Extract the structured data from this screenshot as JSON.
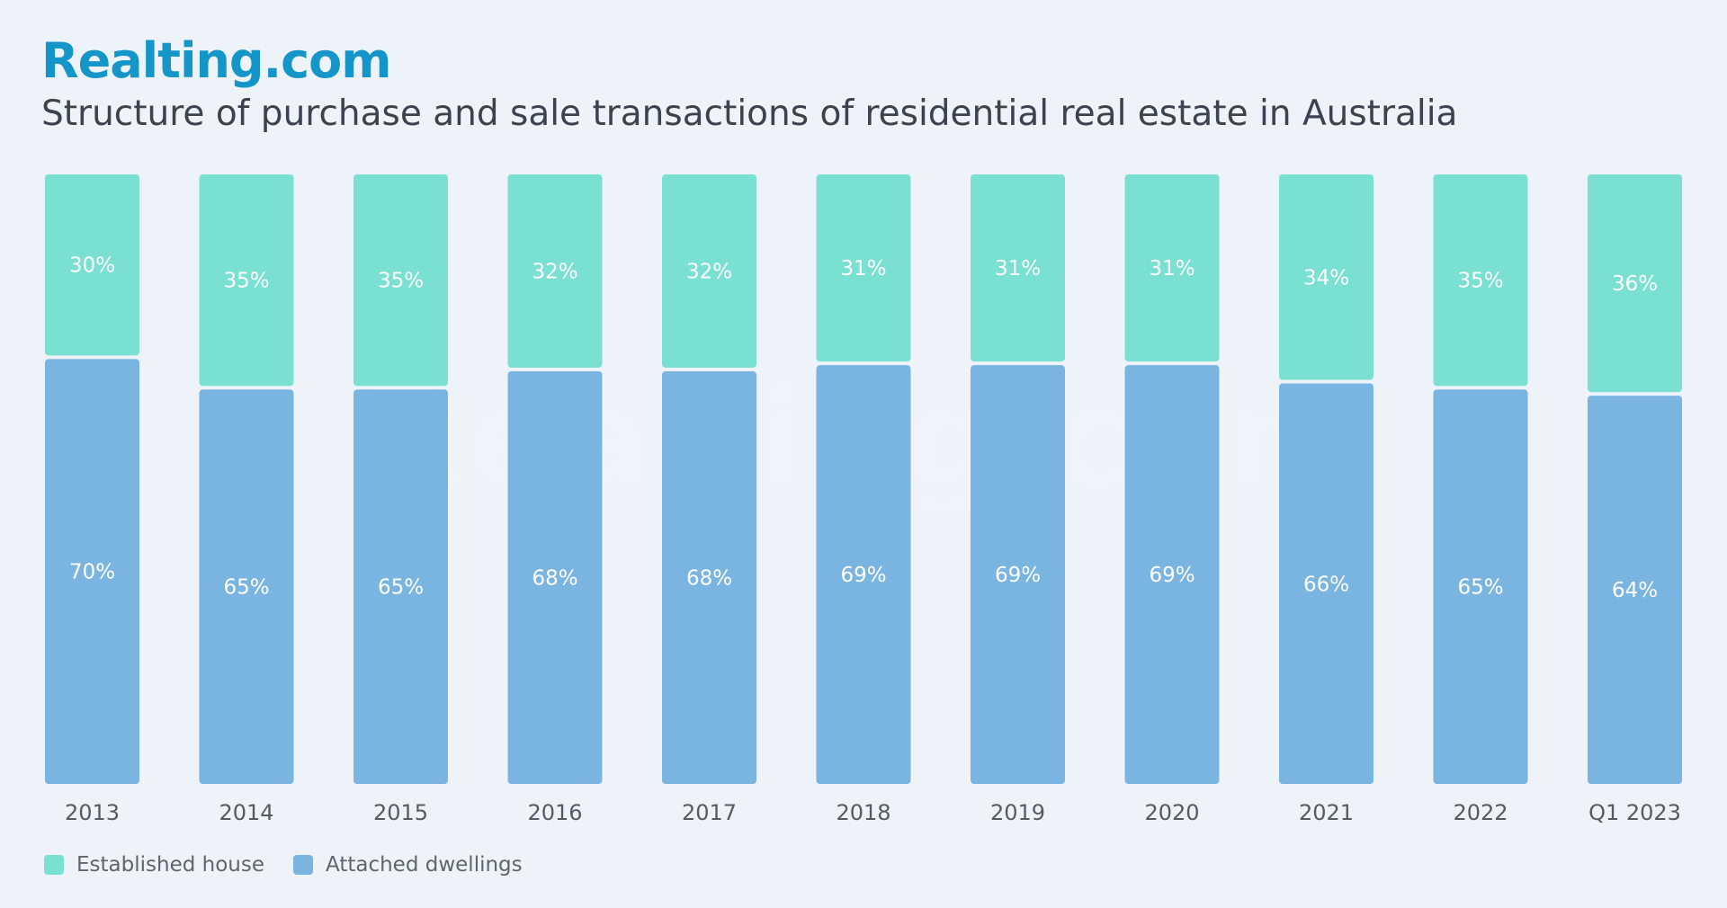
{
  "brand": {
    "logo_text": "Realting.com",
    "watermark_text": "Realting.com"
  },
  "colors": {
    "background": "#eef3fa",
    "established_house": "#79e0d2",
    "attached_dwellings": "#7ab5e2",
    "logo": "#1596c9",
    "title": "#3c4250"
  },
  "chart_data": {
    "type": "bar",
    "stacked": true,
    "title": "Structure of purchase and sale transactions of residential real estate in Australia",
    "categories": [
      "2013",
      "2014",
      "2015",
      "2016",
      "2017",
      "2018",
      "2019",
      "2020",
      "2021",
      "2022",
      "Q1 2023"
    ],
    "series": [
      {
        "name": "Established house",
        "values": [
          30,
          35,
          35,
          32,
          32,
          31,
          31,
          31,
          34,
          35,
          36
        ],
        "labels": [
          "30%",
          "35%",
          "35%",
          "32%",
          "32%",
          "31%",
          "31%",
          "31%",
          "34%",
          "35%",
          "36%"
        ]
      },
      {
        "name": "Attached dwellings",
        "values": [
          70,
          65,
          65,
          68,
          68,
          69,
          69,
          69,
          66,
          65,
          64
        ],
        "labels": [
          "70%",
          "65%",
          "65%",
          "68%",
          "68%",
          "69%",
          "69%",
          "69%",
          "66%",
          "65%",
          "64%"
        ]
      }
    ],
    "unit": "%",
    "ylim": [
      0,
      100
    ],
    "grid": false,
    "legend_position": "bottom-left"
  }
}
